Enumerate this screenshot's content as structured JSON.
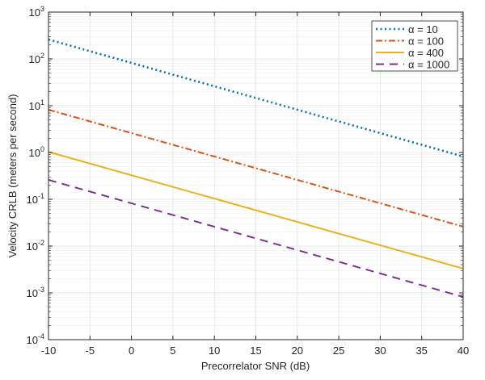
{
  "chart_data": {
    "type": "line",
    "title": "",
    "xlabel": "Precorrelator SNR (dB)",
    "ylabel": "Velocity CRLB (meters per second)",
    "xlim": [
      -10,
      40
    ],
    "ylim": [
      0.0001,
      1000
    ],
    "yscale": "log",
    "grid": true,
    "legend_position": "top-right",
    "x_ticks": [
      "-10",
      "-5",
      "0",
      "5",
      "10",
      "15",
      "20",
      "25",
      "30",
      "35",
      "40"
    ],
    "y_ticks": [
      {
        "base": "10",
        "exp": "-4"
      },
      {
        "base": "10",
        "exp": "-3"
      },
      {
        "base": "10",
        "exp": "-2"
      },
      {
        "base": "10",
        "exp": "-1"
      },
      {
        "base": "10",
        "exp": "0"
      },
      {
        "base": "10",
        "exp": "1"
      },
      {
        "base": "10",
        "exp": "2"
      },
      {
        "base": "10",
        "exp": "3"
      }
    ],
    "series": [
      {
        "name": "α = 10",
        "color": "#0072BD",
        "style": "dotted",
        "x": [
          -10,
          40
        ],
        "y": [
          260,
          0.82
        ]
      },
      {
        "name": "α = 100",
        "color": "#D95319",
        "style": "dashdot",
        "x": [
          -10,
          40
        ],
        "y": [
          8.2,
          0.026
        ]
      },
      {
        "name": "α = 400",
        "color": "#EDB120",
        "style": "solid",
        "x": [
          -10,
          40
        ],
        "y": [
          1.03,
          0.0033
        ]
      },
      {
        "name": "α = 1000",
        "color": "#7E2F8E",
        "style": "dashed",
        "x": [
          -10,
          40
        ],
        "y": [
          0.26,
          0.00082
        ]
      }
    ]
  }
}
